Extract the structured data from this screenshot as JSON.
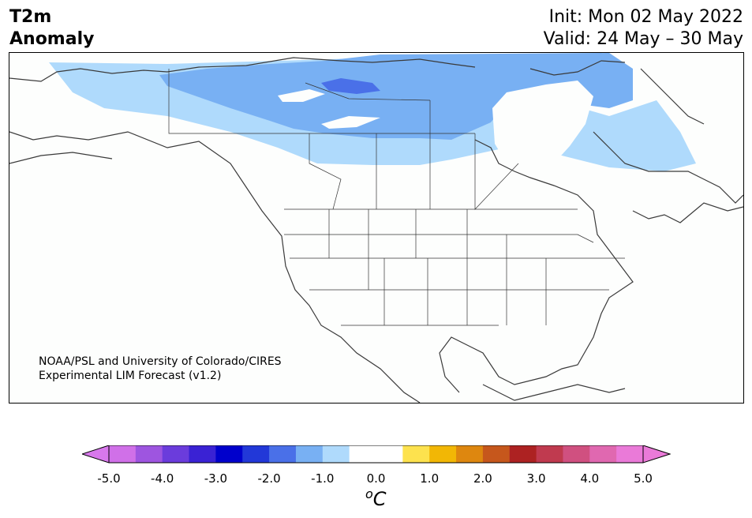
{
  "title": {
    "line1": "T2m",
    "line2": "Anomaly"
  },
  "init": "Init: Mon 02 May 2022",
  "valid": "Valid: 24 May – 30 May",
  "credit": {
    "line1": "NOAA/PSL and University of Colorado/CIRES",
    "line2": "Experimental LIM Forecast (v1.2)"
  },
  "colorbar": {
    "unit": "C",
    "unit_sup": "o",
    "ticks": [
      "-5.0",
      "-4.0",
      "-3.0",
      "-2.0",
      "-1.0",
      "0.0",
      "1.0",
      "2.0",
      "3.0",
      "4.0",
      "5.0"
    ],
    "colors": [
      "#d070e8",
      "#9e55e0",
      "#6b3cdc",
      "#3a22d4",
      "#0000cc",
      "#2238d8",
      "#4a70e8",
      "#78b0f3",
      "#afdafc",
      "#ffffff",
      "#ffffff",
      "#fde24e",
      "#f2b705",
      "#de870f",
      "#c6571c",
      "#ad2222",
      "#c03a4f",
      "#d05080",
      "#e068b0",
      "#ea7ad8"
    ],
    "low_extend_color": "#d878ec",
    "high_extend_color": "#ea7ad8"
  },
  "map": {
    "ocean_color": "#fdfefd",
    "anomaly_fills": [
      {
        "level": "-1.0",
        "color": "#afdafc"
      },
      {
        "level": "-1.5",
        "color": "#78b0f3"
      },
      {
        "level": "-2.0",
        "color": "#4a70e8"
      }
    ],
    "coastline_color": "#3a3a3a"
  }
}
